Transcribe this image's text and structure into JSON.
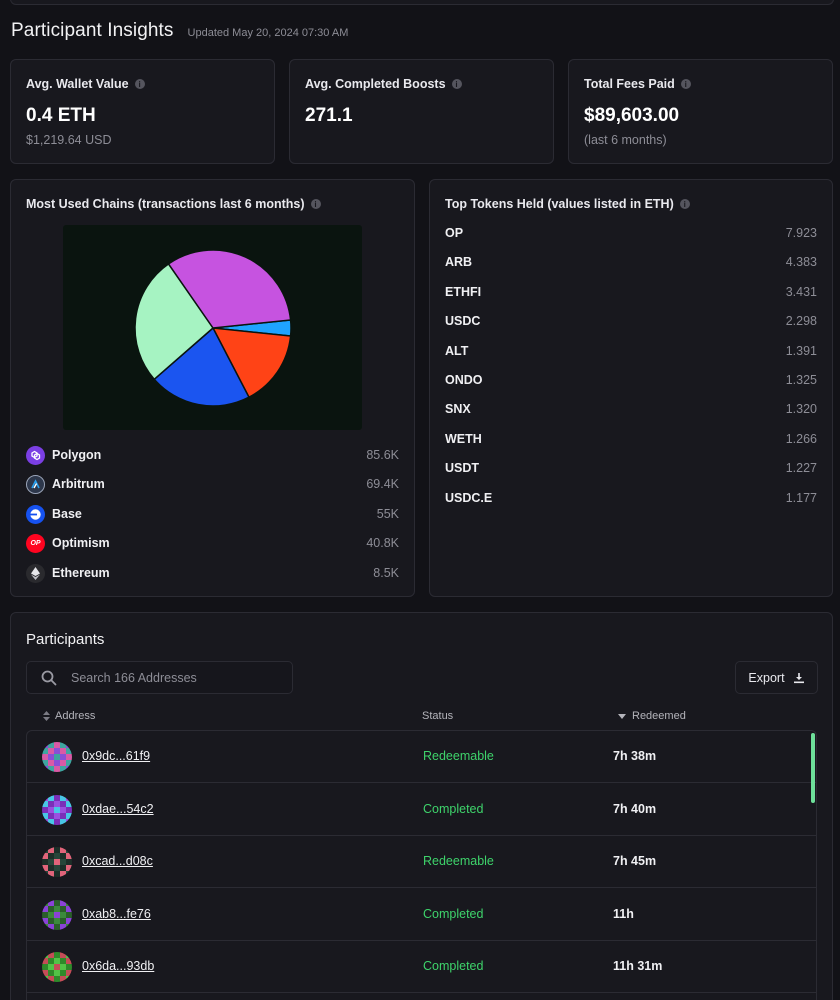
{
  "header": {
    "title": "Participant Insights",
    "updated": "Updated May 20, 2024 07:30 AM"
  },
  "stats": [
    {
      "label": "Avg. Wallet Value",
      "value": "0.4 ETH",
      "sub": "$1,219.64 USD"
    },
    {
      "label": "Avg. Completed Boosts",
      "value": "271.1",
      "sub": ""
    },
    {
      "label": "Total Fees Paid",
      "value": "$89,603.00",
      "sub": "(last 6 months)"
    }
  ],
  "chains": {
    "title": "Most Used Chains (transactions last 6 months)",
    "items": [
      {
        "name": "Polygon",
        "value": "85.6K",
        "icon": "polygon-icon",
        "color": "#7b3fe4"
      },
      {
        "name": "Arbitrum",
        "value": "69.4K",
        "icon": "arbitrum-icon",
        "color": "#2d374b"
      },
      {
        "name": "Base",
        "value": "55K",
        "icon": "base-icon",
        "color": "#1652f0"
      },
      {
        "name": "Optimism",
        "value": "40.8K",
        "icon": "optimism-icon",
        "color": "#ff0420"
      },
      {
        "name": "Ethereum",
        "value": "8.5K",
        "icon": "ethereum-icon",
        "color": "#2a2a2e"
      }
    ]
  },
  "chart_data": {
    "type": "pie",
    "categories": [
      "Polygon",
      "Arbitrum",
      "Base",
      "Optimism",
      "Ethereum"
    ],
    "values": [
      85.6,
      69.4,
      55,
      40.8,
      8.5
    ],
    "colors": [
      "#c653e0",
      "#a6f3c2",
      "#1b55f0",
      "#ff4316",
      "#1fa3ff"
    ],
    "title": "Most Used Chains (transactions last 6 months)"
  },
  "tokens": {
    "title": "Top Tokens Held (values listed in ETH)",
    "items": [
      {
        "name": "OP",
        "value": "7.923"
      },
      {
        "name": "ARB",
        "value": "4.383"
      },
      {
        "name": "ETHFI",
        "value": "3.431"
      },
      {
        "name": "USDC",
        "value": "2.298"
      },
      {
        "name": "ALT",
        "value": "1.391"
      },
      {
        "name": "ONDO",
        "value": "1.325"
      },
      {
        "name": "SNX",
        "value": "1.320"
      },
      {
        "name": "WETH",
        "value": "1.266"
      },
      {
        "name": "USDT",
        "value": "1.227"
      },
      {
        "name": "USDC.E",
        "value": "1.177"
      }
    ]
  },
  "participants": {
    "title": "Participants",
    "search_placeholder": "Search 166 Addresses",
    "export_label": "Export",
    "columns": {
      "address": "Address",
      "status": "Status",
      "redeemed": "Redeemed"
    },
    "status_color": "#3ed36b",
    "rows": [
      {
        "address": "0x9dc...61f9",
        "status": "Redeemable",
        "redeemed": "7h 38m",
        "avatar": [
          "#8a4fd6",
          "#3fa5a0",
          "#d95aa6"
        ]
      },
      {
        "address": "0xdae...54c2",
        "status": "Completed",
        "redeemed": "7h 40m",
        "avatar": [
          "#9b4fe0",
          "#49c6e6",
          "#7a2fb8"
        ]
      },
      {
        "address": "0xcad...d08c",
        "status": "Redeemable",
        "redeemed": "7h 45m",
        "avatar": [
          "#27463a",
          "#e0647a",
          "#1c2e28"
        ]
      },
      {
        "address": "0xab8...fe76",
        "status": "Completed",
        "redeemed": "11h",
        "avatar": [
          "#3b8a3b",
          "#8a43d6",
          "#2a5e2a"
        ]
      },
      {
        "address": "0x6da...93db",
        "status": "Completed",
        "redeemed": "11h 31m",
        "avatar": [
          "#52c447",
          "#c44d57",
          "#2f8a2a"
        ]
      }
    ]
  }
}
